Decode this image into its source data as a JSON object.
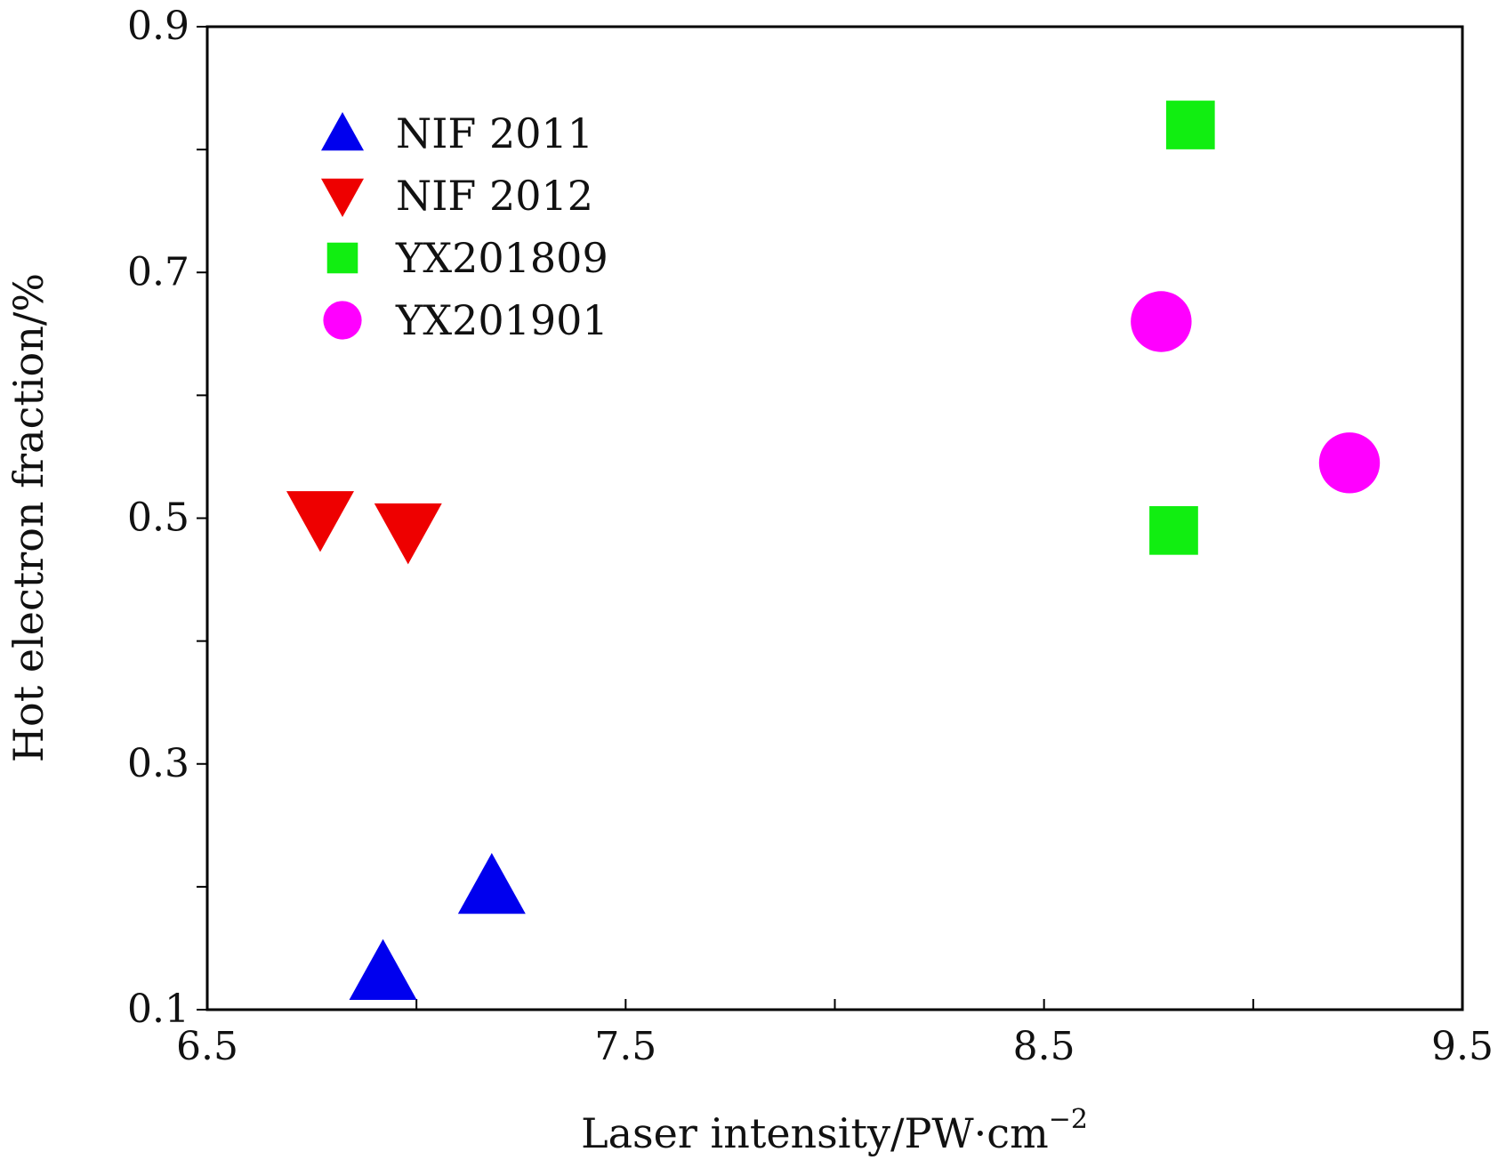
{
  "chart_data": {
    "type": "scatter",
    "title": "",
    "xlabel": "Laser intensity/PW·cm",
    "xlabel_superscript": "−2",
    "ylabel": "Hot electron fraction/%",
    "xlim": [
      6.5,
      9.5
    ],
    "ylim": [
      0.1,
      0.9
    ],
    "x_ticks": [
      6.5,
      7.5,
      8.5,
      9.5
    ],
    "x_tick_labels": [
      "6.5",
      "7.5",
      "8.5",
      "9.5"
    ],
    "x_minor_ticks": [
      7.0,
      8.0,
      9.0
    ],
    "y_ticks": [
      0.1,
      0.3,
      0.5,
      0.7,
      0.9
    ],
    "y_tick_labels": [
      "0.1",
      "0.3",
      "0.5",
      "0.7",
      "0.9"
    ],
    "y_minor_ticks": [
      0.2,
      0.4,
      0.6,
      0.8
    ],
    "grid": false,
    "legend_position": "top-left",
    "series": [
      {
        "name": "NIF 2011",
        "marker": "triangle-up",
        "color": "#0000ee",
        "points": [
          [
            6.92,
            0.13
          ],
          [
            7.18,
            0.2
          ]
        ]
      },
      {
        "name": "NIF 2012",
        "marker": "triangle-down",
        "color": "#ee0000",
        "points": [
          [
            6.77,
            0.5
          ],
          [
            6.98,
            0.49
          ]
        ]
      },
      {
        "name": "YX201809",
        "marker": "square",
        "color": "#11ee11",
        "points": [
          [
            8.85,
            0.82
          ],
          [
            8.81,
            0.49
          ]
        ]
      },
      {
        "name": "YX201901",
        "marker": "circle",
        "color": "#ff00ff",
        "points": [
          [
            8.78,
            0.66
          ],
          [
            9.23,
            0.545
          ]
        ]
      }
    ]
  }
}
